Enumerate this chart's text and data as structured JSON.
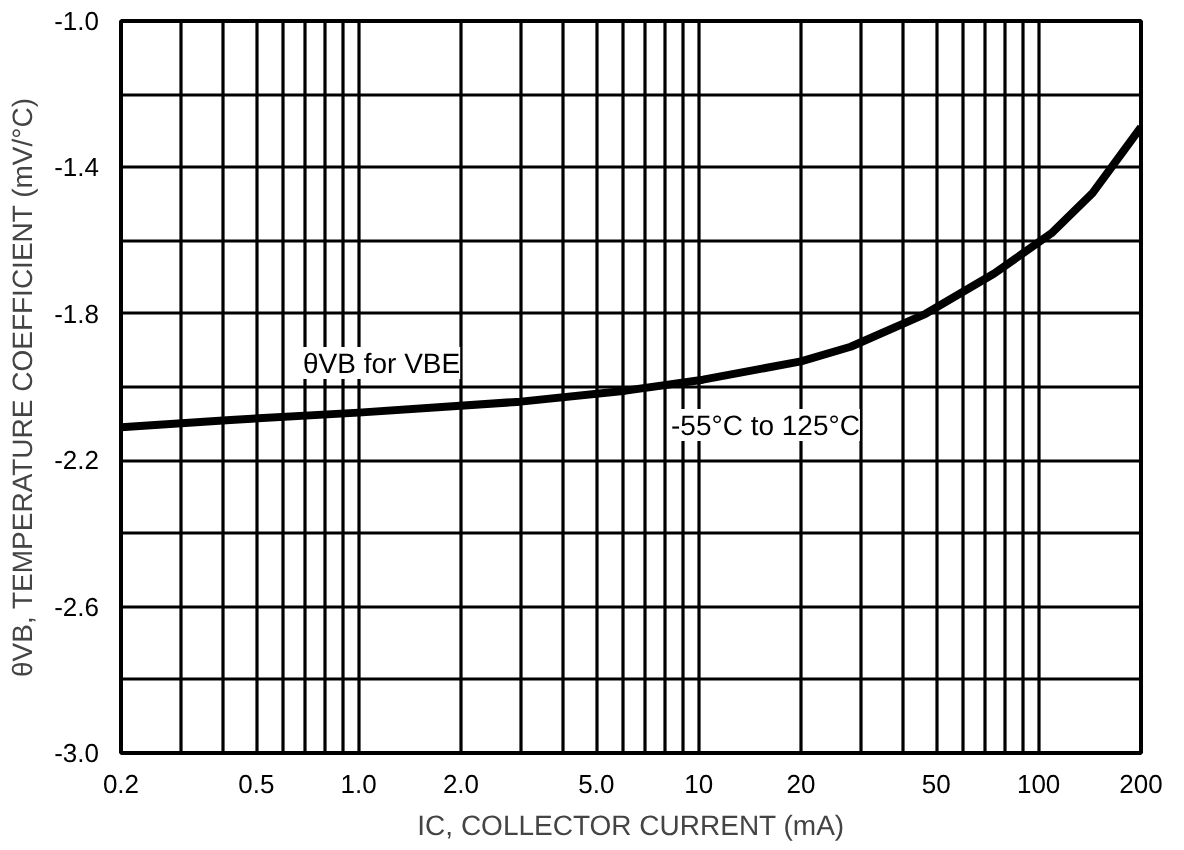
{
  "chart_data": {
    "type": "line",
    "xlabel": "IC, COLLECTOR CURRENT (mA)",
    "ylabel": "θVB, TEMPERATURE COEFFICIENT (mV/°C)",
    "log": "x",
    "grid": true,
    "marker": "none",
    "line_style": "solid",
    "xlim": [
      0.2,
      200
    ],
    "ylim": [
      -3.0,
      -1.0
    ],
    "xticks": [
      0.2,
      {
        "value": 0.3,
        "label": null
      },
      {
        "value": 0.4,
        "label": null
      },
      0.5,
      {
        "value": 0.6,
        "label": null
      },
      {
        "value": 0.7,
        "label": null
      },
      {
        "value": 0.8,
        "label": null
      },
      {
        "value": 0.9,
        "label": null
      },
      {
        "value": 1,
        "label": "1.0"
      },
      {
        "value": 2,
        "label": "2.0"
      },
      {
        "value": 3,
        "label": null
      },
      {
        "value": 4,
        "label": null
      },
      {
        "value": 5,
        "label": "5.0"
      },
      {
        "value": 6,
        "label": null
      },
      {
        "value": 7,
        "label": null
      },
      {
        "value": 8,
        "label": null
      },
      {
        "value": 9,
        "label": null
      },
      10,
      20,
      {
        "value": 30,
        "label": null
      },
      {
        "value": 40,
        "label": null
      },
      50,
      {
        "value": 60,
        "label": null
      },
      {
        "value": 70,
        "label": null
      },
      {
        "value": 80,
        "label": null
      },
      {
        "value": 90,
        "label": null
      },
      100,
      200
    ],
    "yticks": [
      {
        "value": -3.0,
        "label": "-3.0"
      },
      {
        "value": -2.8,
        "label": null
      },
      -2.6,
      {
        "value": -2.4,
        "label": null
      },
      -2.2,
      {
        "value": -2.0,
        "label": null
      },
      -1.8,
      {
        "value": -1.6,
        "label": null
      },
      -1.4,
      {
        "value": -1.2,
        "label": null
      },
      {
        "value": -1.0,
        "label": "-1.0"
      }
    ],
    "series": [
      {
        "color": "#000000",
        "x": [
          0.2,
          0.42,
          1.0,
          3.0,
          6.1,
          10.3,
          20,
          28,
          46.5,
          74,
          109,
          144,
          200
        ],
        "values": [
          -2.11,
          -2.09,
          -2.07,
          -2.04,
          -2.01,
          -1.98,
          -1.93,
          -1.89,
          -1.8,
          -1.69,
          -1.58,
          -1.47,
          -1.29
        ]
      }
    ],
    "annotations": [
      "θVB for VBE",
      "-55°C to 125°C"
    ]
  }
}
